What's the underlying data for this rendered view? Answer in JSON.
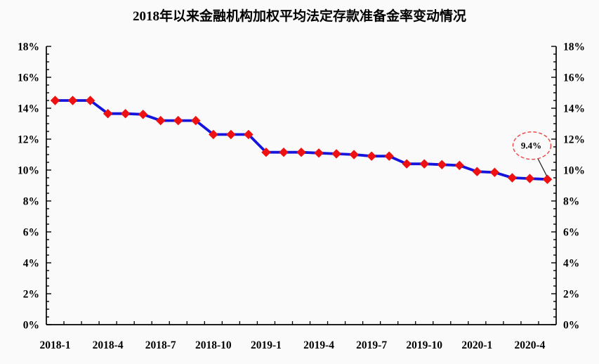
{
  "title": "2018年以来金融机构加权平均法定存款准备金率变动情况",
  "chart_data": {
    "type": "line",
    "series_name": "金融机构加权平均法定存款准备金率",
    "categories": [
      "2018-1",
      "2018-2",
      "2018-3",
      "2018-4",
      "2018-5",
      "2018-6",
      "2018-7",
      "2018-8",
      "2018-9",
      "2018-10",
      "2018-11",
      "2018-12",
      "2019-1",
      "2019-2",
      "2019-3",
      "2019-4",
      "2019-5",
      "2019-6",
      "2019-7",
      "2019-8",
      "2019-9",
      "2019-10",
      "2019-11",
      "2019-12",
      "2020-1",
      "2020-2",
      "2020-3",
      "2020-4",
      "2020-5"
    ],
    "values": [
      14.5,
      14.5,
      14.5,
      13.65,
      13.65,
      13.6,
      13.2,
      13.2,
      13.2,
      12.3,
      12.3,
      12.3,
      11.15,
      11.15,
      11.15,
      11.1,
      11.05,
      11.0,
      10.9,
      10.9,
      10.4,
      10.4,
      10.35,
      10.3,
      9.9,
      9.85,
      9.5,
      9.45,
      9.4
    ],
    "x_tick_labels": [
      "2018-1",
      "2018-4",
      "2018-7",
      "2018-10",
      "2019-1",
      "2019-4",
      "2019-7",
      "2019-10",
      "2020-1",
      "2020-4"
    ],
    "y_tick_labels": [
      "0%",
      "2%",
      "4%",
      "6%",
      "8%",
      "10%",
      "12%",
      "14%",
      "16%",
      "18%"
    ],
    "ylim": [
      0,
      18
    ],
    "y_major_step": 2,
    "y_minor_step": 0.5,
    "dual_y_axis": true,
    "grid": "off",
    "legend": "none",
    "annotation": {
      "text": "9.4%",
      "target_category": "2020-5",
      "target_value": 9.4
    },
    "colors": {
      "line": "#1414dd",
      "marker": "#ee1111",
      "annotation_ellipse": "#ee4444",
      "connector": "#1a1a1a",
      "axis": "#000000",
      "text": "#000000"
    }
  }
}
